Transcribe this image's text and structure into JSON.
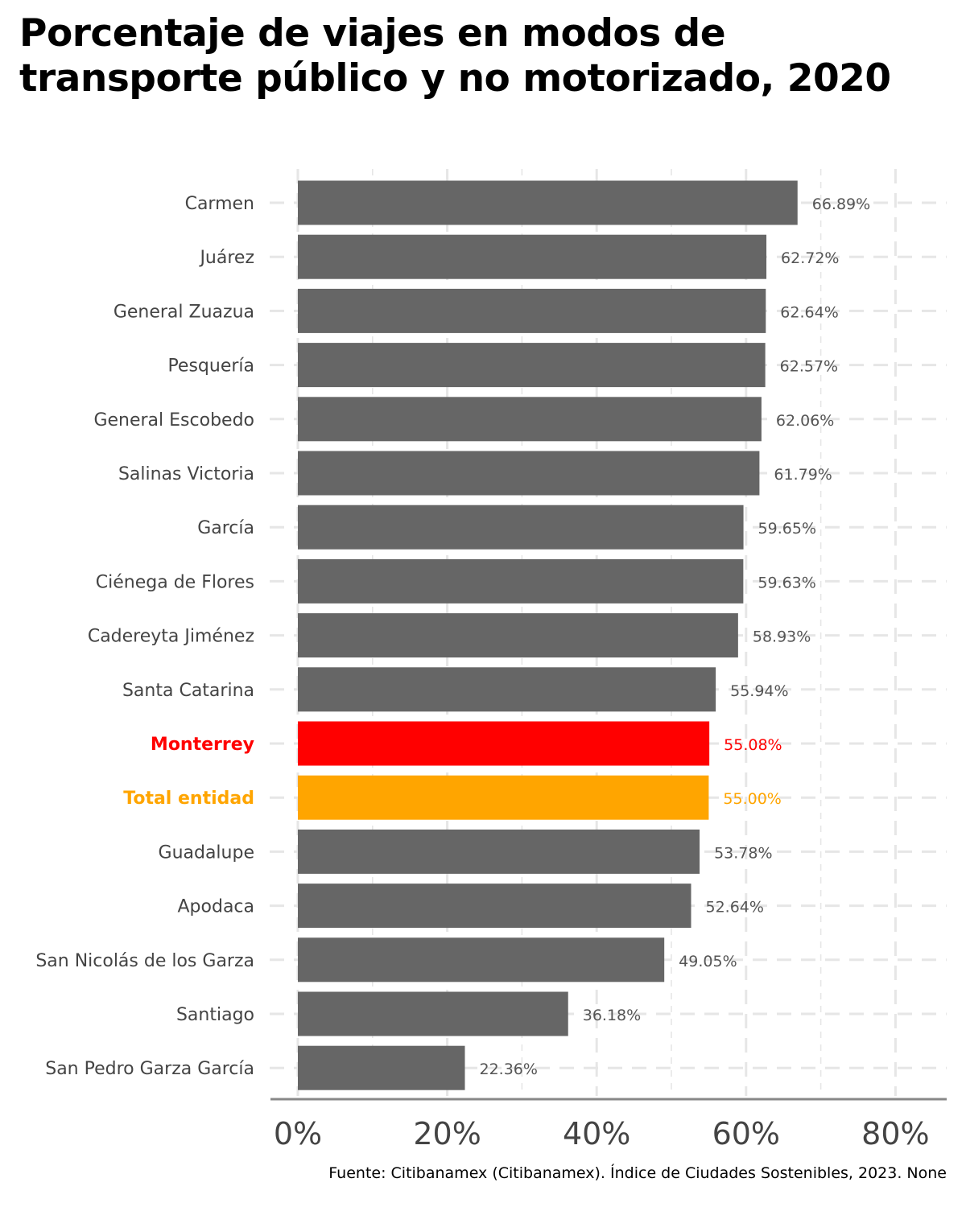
{
  "title": "Porcentaje de viajes en modos de transporte público y no motorizado, 2020",
  "caption": "Fuente: Citibanamex (Citibanamex). Índice de Ciudades Sostenibles, 2023. None",
  "colors": {
    "default_bar": "#666666",
    "highlight_monterrey": "#ff0000",
    "highlight_total": "#ffa500",
    "label_default": "#555555",
    "grid": "#e6e6e6",
    "axis_line": "#888888"
  },
  "chart_data": {
    "type": "bar",
    "orientation": "horizontal",
    "title": "Porcentaje de viajes en modos de transporte público y no motorizado, 2020",
    "xlabel": "",
    "ylabel": "",
    "xlim": [
      0,
      85
    ],
    "x_ticks": [
      {
        "value": 0,
        "label": "0%"
      },
      {
        "value": 20,
        "label": "20%"
      },
      {
        "value": 40,
        "label": "40%"
      },
      {
        "value": 60,
        "label": "60%"
      },
      {
        "value": 80,
        "label": "80%"
      }
    ],
    "grid": true,
    "categories": [
      "Carmen",
      "Juárez",
      "General Zuazua",
      "Pesquería",
      "General Escobedo",
      "Salinas Victoria",
      "García",
      "Ciénega de Flores",
      "Cadereyta Jiménez",
      "Santa Catarina",
      "Monterrey",
      "Total entidad",
      "Guadalupe",
      "Apodaca",
      "San Nicolás de los Garza",
      "Santiago",
      "San Pedro Garza García"
    ],
    "values": [
      66.89,
      62.72,
      62.64,
      62.57,
      62.06,
      61.79,
      59.65,
      59.63,
      58.93,
      55.94,
      55.08,
      55.0,
      53.78,
      52.64,
      49.05,
      36.18,
      22.36
    ],
    "value_labels": [
      "66.89%",
      "62.72%",
      "62.64%",
      "62.57%",
      "62.06%",
      "61.79%",
      "59.65%",
      "59.63%",
      "58.93%",
      "55.94%",
      "55.08%",
      "55.00%",
      "53.78%",
      "52.64%",
      "49.05%",
      "36.18%",
      "22.36%"
    ],
    "highlights": {
      "Monterrey": "#ff0000",
      "Total entidad": "#ffa500"
    }
  }
}
